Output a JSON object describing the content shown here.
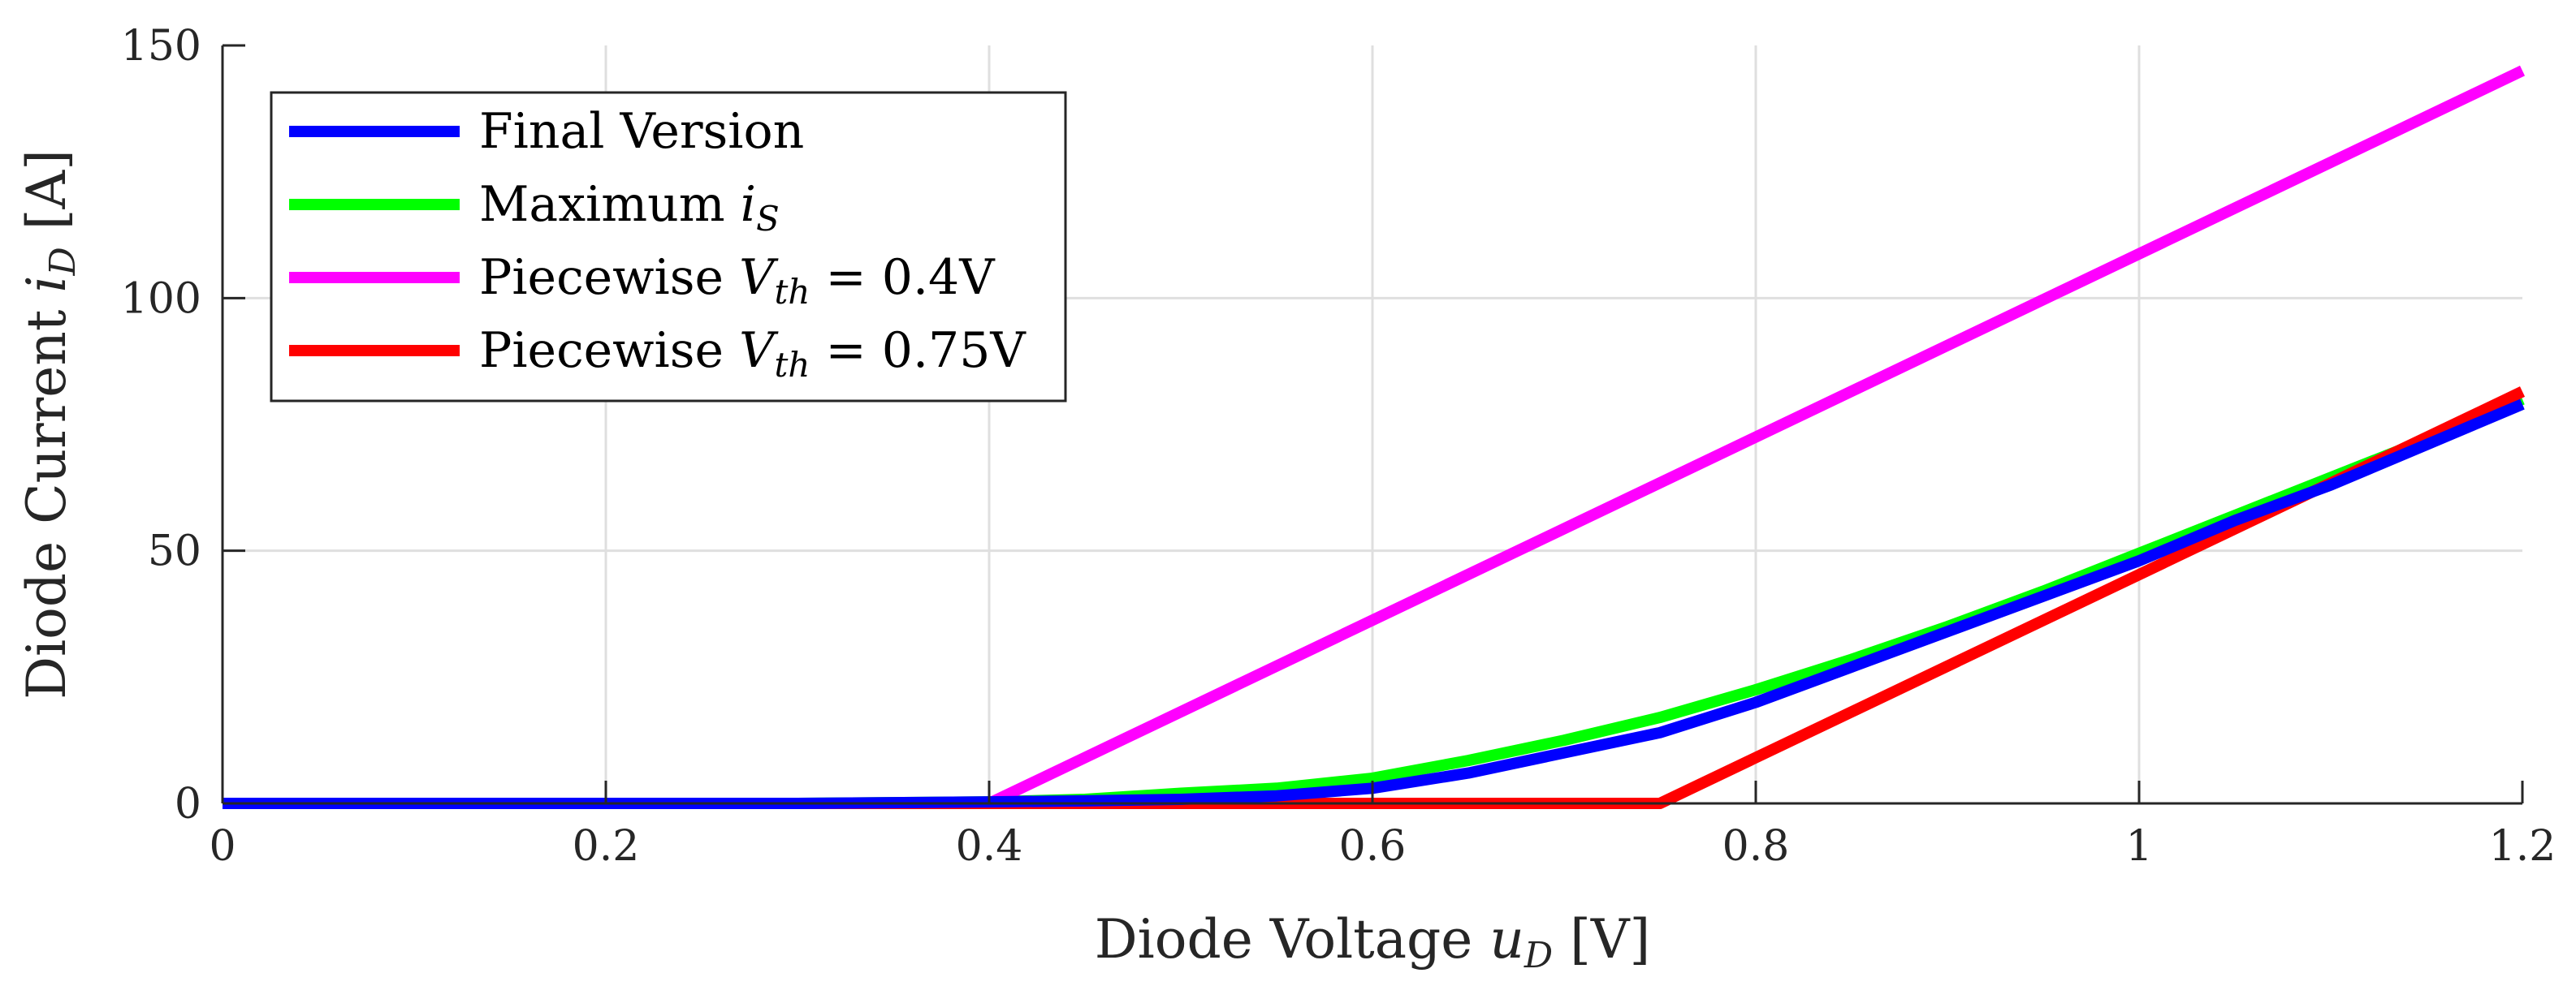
{
  "chart_data": {
    "type": "line",
    "xlabel": "Diode Voltage",
    "xlabel_symbol": "u",
    "xlabel_sub": "D",
    "xlabel_unit": "[V]",
    "ylabel": "Diode Current",
    "ylabel_symbol": "i",
    "ylabel_sub": "D",
    "ylabel_unit": "[A]",
    "xlim": [
      0,
      1.2
    ],
    "ylim": [
      0,
      150
    ],
    "xticks": [
      0,
      0.2,
      0.4,
      0.6,
      0.8,
      1,
      1.2
    ],
    "xtick_labels": [
      "0",
      "0.2",
      "0.4",
      "0.6",
      "0.8",
      "1",
      "1.2"
    ],
    "yticks": [
      0,
      50,
      100,
      150
    ],
    "ytick_labels": [
      "0",
      "50",
      "100",
      "150"
    ],
    "grid": true,
    "legend_position": "top-left",
    "series": [
      {
        "name": "Final Version",
        "legend_text": "Final Version",
        "legend_math": "",
        "legend_sub": "",
        "legend_tail": "",
        "color": "#0000ff",
        "x": [
          0,
          0.1,
          0.2,
          0.3,
          0.4,
          0.45,
          0.5,
          0.55,
          0.6,
          0.65,
          0.7,
          0.75,
          0.8,
          0.85,
          0.9,
          0.95,
          1.0,
          1.05,
          1.1,
          1.15,
          1.2
        ],
        "y": [
          0,
          0,
          0,
          0,
          0.3,
          0.5,
          0.8,
          1.5,
          3,
          6,
          10,
          14,
          20,
          27,
          34,
          41,
          48,
          56,
          63,
          71,
          79
        ]
      },
      {
        "name": "Maximum iS",
        "legend_text": "Maximum ",
        "legend_math": "i",
        "legend_sub": "S",
        "legend_tail": "",
        "color": "#00ff00",
        "x": [
          0,
          0.1,
          0.2,
          0.3,
          0.4,
          0.45,
          0.5,
          0.55,
          0.6,
          0.65,
          0.7,
          0.75,
          0.8,
          0.85,
          0.9,
          0.95,
          1.0,
          1.05,
          1.1,
          1.15,
          1.2
        ],
        "y": [
          0,
          0,
          0,
          0,
          0.3,
          0.8,
          2,
          3,
          5,
          8.5,
          12.5,
          17,
          22.5,
          28.5,
          35,
          42,
          49.5,
          57,
          64.5,
          72,
          80
        ]
      },
      {
        "name": "Piecewise Vth = 0.4V",
        "legend_text": "Piecewise ",
        "legend_math": "V",
        "legend_sub": "th",
        "legend_tail": " = 0.4V",
        "color": "#ff00ff",
        "x": [
          0,
          0.4,
          1.2
        ],
        "y": [
          0,
          0,
          145
        ]
      },
      {
        "name": "Piecewise Vth = 0.75V",
        "legend_text": "Piecewise ",
        "legend_math": "V",
        "legend_sub": "th",
        "legend_tail": " = 0.75V",
        "color": "#ff0000",
        "x": [
          0,
          0.75,
          1.2
        ],
        "y": [
          0,
          0,
          81.5
        ]
      }
    ]
  }
}
